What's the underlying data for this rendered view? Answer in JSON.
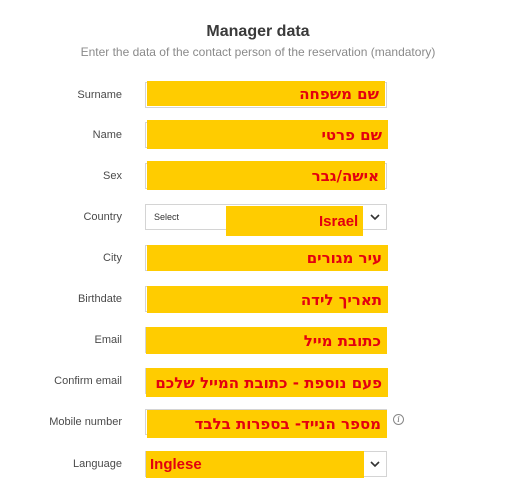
{
  "header": {
    "title": "Manager data",
    "subtitle": "Enter the data of the contact person of the reservation (mandatory)"
  },
  "fields": {
    "surname": {
      "label": "Surname",
      "annotation": "שם משפחה"
    },
    "name": {
      "label": "Name",
      "annotation": "שם פרטי"
    },
    "sex": {
      "label": "Sex",
      "annotation": "אישה/גבר"
    },
    "country": {
      "label": "Country",
      "placeholder": "Select",
      "annotation": "Israel"
    },
    "city": {
      "label": "City",
      "annotation": "עיר מגורים"
    },
    "birthdate": {
      "label": "Birthdate",
      "annotation": "תאריך לידה"
    },
    "email": {
      "label": "Email",
      "annotation": "כתובת מייל"
    },
    "confirm_email": {
      "label": "Confirm email",
      "annotation": "פעם נוספת - כתובת המייל שלכם"
    },
    "mobile": {
      "label": "Mobile number",
      "annotation": "מספר הנייד- בספרות בלבד",
      "info_icon": "info-icon"
    },
    "language": {
      "label": "Language",
      "annotation": "Inglese"
    }
  },
  "colors": {
    "highlight": "#ffcc00",
    "annotation_text": "#e3000f"
  },
  "icons": {
    "dropdown": "chevron-down-icon",
    "info": "info-icon"
  }
}
